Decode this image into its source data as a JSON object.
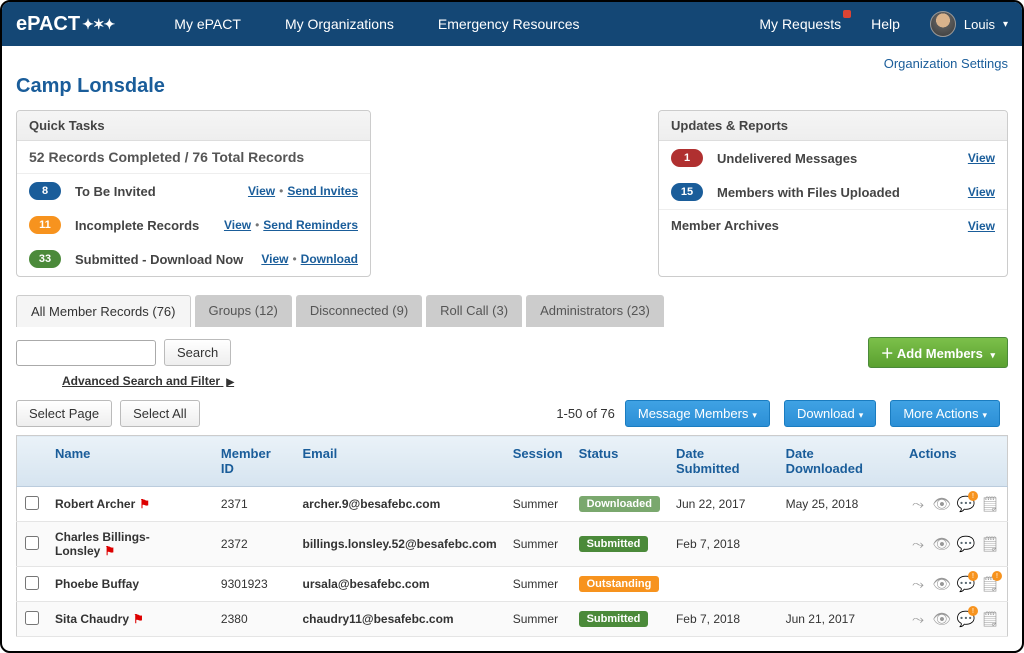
{
  "brand": "ePACT",
  "nav": {
    "my_epact": "My ePACT",
    "my_orgs": "My Organizations",
    "emergency": "Emergency Resources",
    "requests": "My Requests",
    "help": "Help",
    "user": "Louis"
  },
  "org_settings": "Organization Settings",
  "page_title": "Camp Lonsdale",
  "quick_tasks": {
    "header": "Quick Tasks",
    "summary": "52 Records Completed / 76 Total Records",
    "rows": [
      {
        "count": "8",
        "badge": "blue",
        "label": "To Be Invited",
        "a1": "View",
        "a2": "Send Invites"
      },
      {
        "count": "11",
        "badge": "orange",
        "label": "Incomplete Records",
        "a1": "View",
        "a2": "Send Reminders"
      },
      {
        "count": "33",
        "badge": "green",
        "label": "Submitted - Download Now",
        "a1": "View",
        "a2": "Download"
      }
    ]
  },
  "updates": {
    "header": "Updates & Reports",
    "rows": [
      {
        "count": "1",
        "badge": "red",
        "label": "Undelivered Messages",
        "view": "View"
      },
      {
        "count": "15",
        "badge": "blue",
        "label": "Members with Files Uploaded",
        "view": "View"
      }
    ],
    "archives": {
      "label": "Member Archives",
      "view": "View"
    }
  },
  "tabs": [
    {
      "label": "All Member Records (76)",
      "active": true
    },
    {
      "label": "Groups (12)"
    },
    {
      "label": "Disconnected (9)"
    },
    {
      "label": "Roll Call (3)"
    },
    {
      "label": "Administrators (23)"
    }
  ],
  "search": {
    "btn": "Search",
    "adv": "Advanced Search and Filter"
  },
  "add_members": "Add Members",
  "toolbar": {
    "select_page": "Select Page",
    "select_all": "Select All",
    "pager": "1-50 of 76",
    "msg": "Message Members",
    "dl": "Download",
    "more": "More Actions"
  },
  "columns": {
    "name": "Name",
    "member_id": "Member ID",
    "email": "Email",
    "session": "Session",
    "status": "Status",
    "date_sub": "Date Submitted",
    "date_dl": "Date Downloaded",
    "actions": "Actions"
  },
  "rows": [
    {
      "name": "Robert Archer",
      "flag": true,
      "member_id": "2371",
      "email": "archer.9@besafebc.com",
      "session": "Summer",
      "status": "Downloaded",
      "date_sub": "Jun 22, 2017",
      "date_dl": "May 25, 2018",
      "comment_warn": true,
      "note_warn": false
    },
    {
      "name": "Charles Billings-Lonsley",
      "flag": true,
      "member_id": "2372",
      "email": "billings.lonsley.52@besafebc.com",
      "session": "Summer",
      "status": "Submitted",
      "date_sub": "Feb 7, 2018",
      "date_dl": "",
      "comment_warn": false,
      "note_warn": false
    },
    {
      "name": "Phoebe Buffay",
      "flag": false,
      "member_id": "9301923",
      "email": "ursala@besafebc.com",
      "session": "Summer",
      "status": "Outstanding",
      "date_sub": "",
      "date_dl": "",
      "comment_warn": true,
      "note_warn": true
    },
    {
      "name": "Sita Chaudry",
      "flag": true,
      "member_id": "2380",
      "email": "chaudry11@besafebc.com",
      "session": "Summer",
      "status": "Submitted",
      "date_sub": "Feb 7, 2018",
      "date_dl": "Jun 21, 2017",
      "comment_warn": true,
      "note_warn": false
    }
  ]
}
